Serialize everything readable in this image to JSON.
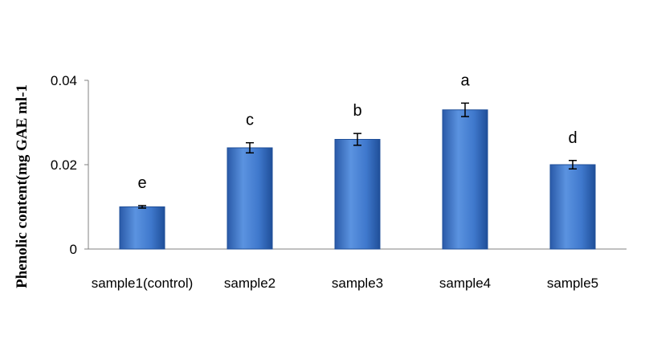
{
  "chart_data": {
    "type": "bar",
    "title": "",
    "xlabel": "",
    "ylabel": "Phenolic content(mg GAE ml-1",
    "ylim": [
      0,
      0.04
    ],
    "yticks": [
      "0",
      "0.02",
      "0.04"
    ],
    "categories": [
      "sample1(control)",
      "sample2",
      "sample3",
      "sample4",
      "sample5"
    ],
    "values": [
      0.01,
      0.024,
      0.026,
      0.033,
      0.02
    ],
    "errors": [
      0.0003,
      0.0012,
      0.0014,
      0.0016,
      0.001
    ],
    "significance_letters": [
      "e",
      "c",
      "b",
      "a",
      "d"
    ],
    "bar_color": "#3f78cc",
    "bar_color_dark": "#1f4f99",
    "grid": false,
    "legend": "none"
  }
}
